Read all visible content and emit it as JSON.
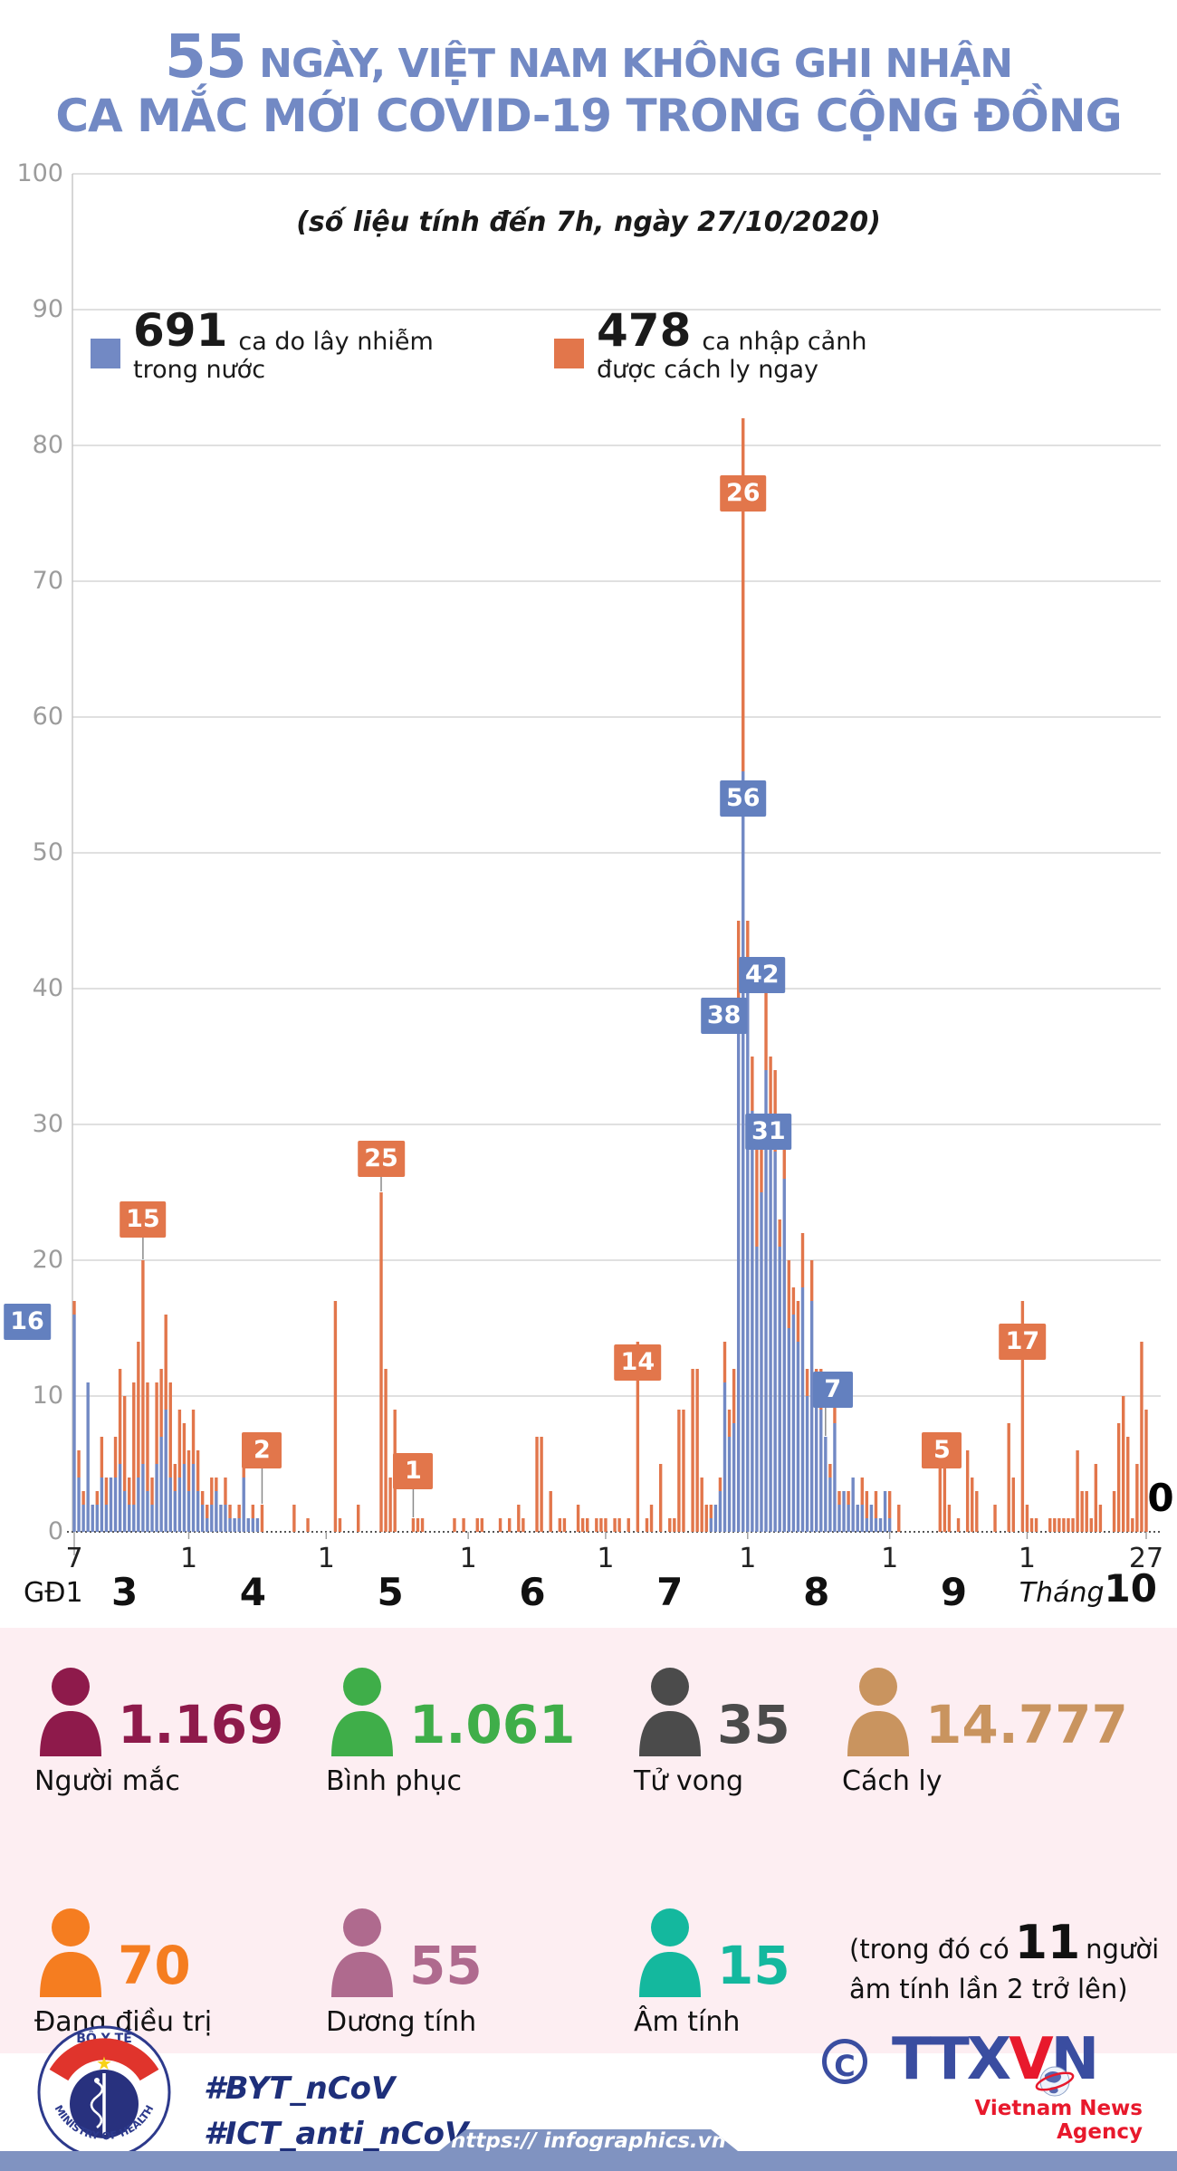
{
  "colors": {
    "bar_blue": "#7289c4",
    "bar_orange": "#e2764b",
    "title_blue": "#7289c4",
    "grid": "#cdcdcd",
    "axis_label_gray": "#9c9c9c",
    "pink_bg": "#fdeef2",
    "bottom_bar": "#8093c1",
    "hashtag_navy": "#1e2f7a",
    "ttx_blue": "#3a4da0",
    "ttx_red": "#e8192c"
  },
  "title": {
    "big": "55",
    "line1_rest": " NGÀY, VIỆT NAM KHÔNG GHI NHẬN",
    "line2": "CA MẮC MỚI COVID-19 TRONG CỘNG ĐỒNG",
    "subtitle": "(số liệu tính đến 7h, ngày 27/10/2020)"
  },
  "legend": {
    "domestic": {
      "value": "691",
      "label1": "ca do lây nhiễm",
      "label2": "trong nước",
      "color": "#7289c4"
    },
    "imported": {
      "value": "478",
      "label1": "ca nhập cảnh",
      "label2": "được cách ly ngay",
      "color": "#e2764b"
    }
  },
  "chart_data": {
    "type": "bar",
    "subtype": "stacked-daily",
    "title": "55 ngày, Việt Nam không ghi nhận ca mắc mới COVID-19 trong cộng đồng",
    "series_names": [
      "ca do lây nhiễm trong nước",
      "ca nhập cảnh được cách ly ngay"
    ],
    "series_colors": [
      "#7289c4",
      "#e2764b"
    ],
    "ylim": [
      0,
      100
    ],
    "ytick_step": 10,
    "grid": true,
    "xlabel": "Tháng",
    "x_start_note": "GĐ1",
    "days": [
      [
        "7/3",
        16,
        1
      ],
      [
        "8/3",
        4,
        2
      ],
      [
        "9/3",
        2,
        1
      ],
      [
        "10/3",
        11,
        0
      ],
      [
        "11/3",
        2,
        0
      ],
      [
        "12/3",
        2,
        1
      ],
      [
        "13/3",
        4,
        3
      ],
      [
        "14/3",
        2,
        2
      ],
      [
        "15/3",
        4,
        0
      ],
      [
        "16/3",
        4,
        3
      ],
      [
        "17/3",
        5,
        7
      ],
      [
        "18/3",
        3,
        7
      ],
      [
        "19/3",
        2,
        2
      ],
      [
        "20/3",
        2,
        9
      ],
      [
        "21/3",
        4,
        10
      ],
      [
        "22/3",
        5,
        15
      ],
      [
        "23/3",
        3,
        8
      ],
      [
        "24/3",
        2,
        2
      ],
      [
        "25/3",
        5,
        6
      ],
      [
        "26/3",
        7,
        5
      ],
      [
        "27/3",
        9,
        7
      ],
      [
        "28/3",
        4,
        7
      ],
      [
        "29/3",
        3,
        2
      ],
      [
        "30/3",
        4,
        5
      ],
      [
        "31/3",
        5,
        3
      ],
      [
        "1/4",
        3,
        3
      ],
      [
        "2/4",
        5,
        4
      ],
      [
        "3/4",
        3,
        3
      ],
      [
        "4/4",
        2,
        1
      ],
      [
        "5/4",
        1,
        1
      ],
      [
        "6/4",
        2,
        2
      ],
      [
        "7/4",
        3,
        1
      ],
      [
        "8/4",
        2,
        0
      ],
      [
        "9/4",
        2,
        2
      ],
      [
        "10/4",
        1,
        1
      ],
      [
        "11/4",
        1,
        0
      ],
      [
        "12/4",
        1,
        1
      ],
      [
        "13/4",
        4,
        1
      ],
      [
        "14/4",
        1,
        0
      ],
      [
        "15/4",
        1,
        1
      ],
      [
        "16/4",
        1,
        0
      ],
      [
        "17/4",
        0,
        2
      ],
      [
        "18/4",
        0,
        0
      ],
      [
        "19/4",
        0,
        0
      ],
      [
        "20/4",
        0,
        0
      ],
      [
        "21/4",
        0,
        0
      ],
      [
        "22/4",
        0,
        0
      ],
      [
        "23/4",
        0,
        0
      ],
      [
        "24/4",
        0,
        2
      ],
      [
        "25/4",
        0,
        0
      ],
      [
        "26/4",
        0,
        0
      ],
      [
        "27/4",
        0,
        1
      ],
      [
        "28/4",
        0,
        0
      ],
      [
        "29/4",
        0,
        0
      ],
      [
        "30/4",
        0,
        0
      ],
      [
        "1/5",
        0,
        0
      ],
      [
        "2/5",
        0,
        0
      ],
      [
        "3/5",
        0,
        17
      ],
      [
        "4/5",
        0,
        1
      ],
      [
        "5/5",
        0,
        0
      ],
      [
        "6/5",
        0,
        0
      ],
      [
        "7/5",
        0,
        0
      ],
      [
        "8/5",
        0,
        2
      ],
      [
        "9/5",
        0,
        0
      ],
      [
        "10/5",
        0,
        0
      ],
      [
        "11/5",
        0,
        0
      ],
      [
        "12/5",
        0,
        0
      ],
      [
        "13/5",
        0,
        25
      ],
      [
        "14/5",
        0,
        12
      ],
      [
        "15/5",
        0,
        4
      ],
      [
        "16/5",
        0,
        9
      ],
      [
        "17/5",
        0,
        0
      ],
      [
        "18/5",
        0,
        0
      ],
      [
        "19/5",
        0,
        0
      ],
      [
        "20/5",
        0,
        1
      ],
      [
        "21/5",
        0,
        1
      ],
      [
        "22/5",
        0,
        1
      ],
      [
        "23/5",
        0,
        0
      ],
      [
        "24/5",
        0,
        0
      ],
      [
        "25/5",
        0,
        0
      ],
      [
        "26/5",
        0,
        0
      ],
      [
        "27/5",
        0,
        0
      ],
      [
        "28/5",
        0,
        0
      ],
      [
        "29/5",
        0,
        1
      ],
      [
        "30/5",
        0,
        0
      ],
      [
        "31/5",
        0,
        1
      ],
      [
        "1/6",
        0,
        0
      ],
      [
        "2/6",
        0,
        0
      ],
      [
        "3/6",
        0,
        1
      ],
      [
        "4/6",
        0,
        1
      ],
      [
        "5/6",
        0,
        0
      ],
      [
        "6/6",
        0,
        0
      ],
      [
        "7/6",
        0,
        0
      ],
      [
        "8/6",
        0,
        1
      ],
      [
        "9/6",
        0,
        0
      ],
      [
        "10/6",
        0,
        1
      ],
      [
        "11/6",
        0,
        0
      ],
      [
        "12/6",
        0,
        2
      ],
      [
        "13/6",
        0,
        1
      ],
      [
        "14/6",
        0,
        0
      ],
      [
        "15/6",
        0,
        0
      ],
      [
        "16/6",
        0,
        7
      ],
      [
        "17/6",
        0,
        7
      ],
      [
        "18/6",
        0,
        0
      ],
      [
        "19/6",
        0,
        3
      ],
      [
        "20/6",
        0,
        0
      ],
      [
        "21/6",
        0,
        1
      ],
      [
        "22/6",
        0,
        1
      ],
      [
        "23/6",
        0,
        0
      ],
      [
        "24/6",
        0,
        0
      ],
      [
        "25/6",
        0,
        2
      ],
      [
        "26/6",
        0,
        1
      ],
      [
        "27/6",
        0,
        1
      ],
      [
        "28/6",
        0,
        0
      ],
      [
        "29/6",
        0,
        1
      ],
      [
        "30/6",
        0,
        1
      ],
      [
        "1/7",
        0,
        1
      ],
      [
        "2/7",
        0,
        0
      ],
      [
        "3/7",
        0,
        1
      ],
      [
        "4/7",
        0,
        1
      ],
      [
        "5/7",
        0,
        0
      ],
      [
        "6/7",
        0,
        1
      ],
      [
        "7/7",
        0,
        0
      ],
      [
        "8/7",
        0,
        14
      ],
      [
        "9/7",
        0,
        0
      ],
      [
        "10/7",
        0,
        1
      ],
      [
        "11/7",
        0,
        2
      ],
      [
        "12/7",
        0,
        0
      ],
      [
        "13/7",
        0,
        5
      ],
      [
        "14/7",
        0,
        0
      ],
      [
        "15/7",
        0,
        1
      ],
      [
        "16/7",
        0,
        1
      ],
      [
        "17/7",
        0,
        9
      ],
      [
        "18/7",
        0,
        9
      ],
      [
        "19/7",
        0,
        0
      ],
      [
        "20/7",
        0,
        12
      ],
      [
        "21/7",
        0,
        12
      ],
      [
        "22/7",
        0,
        4
      ],
      [
        "23/7",
        0,
        2
      ],
      [
        "24/7",
        1,
        1
      ],
      [
        "25/7",
        2,
        0
      ],
      [
        "26/7",
        3,
        1
      ],
      [
        "27/7",
        11,
        3
      ],
      [
        "28/7",
        7,
        2
      ],
      [
        "29/7",
        8,
        4
      ],
      [
        "30/7",
        38,
        7
      ],
      [
        "31/7",
        56,
        26
      ],
      [
        "1/8",
        42,
        3
      ],
      [
        "2/8",
        31,
        4
      ],
      [
        "3/8",
        21,
        8
      ],
      [
        "4/8",
        25,
        5
      ],
      [
        "5/8",
        34,
        7
      ],
      [
        "6/8",
        30,
        5
      ],
      [
        "7/8",
        28,
        6
      ],
      [
        "8/8",
        21,
        2
      ],
      [
        "9/8",
        26,
        3
      ],
      [
        "10/8",
        15,
        5
      ],
      [
        "11/8",
        16,
        2
      ],
      [
        "12/8",
        14,
        3
      ],
      [
        "13/8",
        18,
        4
      ],
      [
        "14/8",
        10,
        2
      ],
      [
        "15/8",
        17,
        3
      ],
      [
        "16/8",
        11,
        1
      ],
      [
        "17/8",
        9,
        3
      ],
      [
        "18/8",
        7,
        0
      ],
      [
        "19/8",
        4,
        1
      ],
      [
        "20/8",
        8,
        2
      ],
      [
        "21/8",
        2,
        1
      ],
      [
        "22/8",
        3,
        0
      ],
      [
        "23/8",
        2,
        1
      ],
      [
        "24/8",
        4,
        0
      ],
      [
        "25/8",
        2,
        0
      ],
      [
        "26/8",
        2,
        2
      ],
      [
        "27/8",
        1,
        2
      ],
      [
        "28/8",
        2,
        0
      ],
      [
        "29/8",
        1,
        2
      ],
      [
        "30/8",
        1,
        0
      ],
      [
        "31/8",
        3,
        0
      ],
      [
        "1/9",
        1,
        2
      ],
      [
        "2/9",
        0,
        0
      ],
      [
        "3/9",
        0,
        2
      ],
      [
        "4/9",
        0,
        0
      ],
      [
        "5/9",
        0,
        0
      ],
      [
        "6/9",
        0,
        0
      ],
      [
        "7/9",
        0,
        0
      ],
      [
        "8/9",
        0,
        0
      ],
      [
        "9/9",
        0,
        0
      ],
      [
        "10/9",
        0,
        0
      ],
      [
        "11/9",
        0,
        0
      ],
      [
        "12/9",
        0,
        5
      ],
      [
        "13/9",
        0,
        5
      ],
      [
        "14/9",
        0,
        2
      ],
      [
        "15/9",
        0,
        0
      ],
      [
        "16/9",
        0,
        1
      ],
      [
        "17/9",
        0,
        0
      ],
      [
        "18/9",
        0,
        6
      ],
      [
        "19/9",
        0,
        4
      ],
      [
        "20/9",
        0,
        3
      ],
      [
        "21/9",
        0,
        0
      ],
      [
        "22/9",
        0,
        0
      ],
      [
        "23/9",
        0,
        0
      ],
      [
        "24/9",
        0,
        2
      ],
      [
        "25/9",
        0,
        0
      ],
      [
        "26/9",
        0,
        0
      ],
      [
        "27/9",
        0,
        8
      ],
      [
        "28/9",
        0,
        4
      ],
      [
        "29/9",
        0,
        0
      ],
      [
        "30/9",
        0,
        17
      ],
      [
        "1/10",
        0,
        2
      ],
      [
        "2/10",
        0,
        1
      ],
      [
        "3/10",
        0,
        1
      ],
      [
        "4/10",
        0,
        0
      ],
      [
        "5/10",
        0,
        0
      ],
      [
        "6/10",
        0,
        1
      ],
      [
        "7/10",
        0,
        1
      ],
      [
        "8/10",
        0,
        1
      ],
      [
        "9/10",
        0,
        1
      ],
      [
        "10/10",
        0,
        1
      ],
      [
        "11/10",
        0,
        1
      ],
      [
        "12/10",
        0,
        6
      ],
      [
        "13/10",
        0,
        3
      ],
      [
        "14/10",
        0,
        3
      ],
      [
        "15/10",
        0,
        1
      ],
      [
        "16/10",
        0,
        5
      ],
      [
        "17/10",
        0,
        2
      ],
      [
        "18/10",
        0,
        0
      ],
      [
        "19/10",
        0,
        0
      ],
      [
        "20/10",
        0,
        3
      ],
      [
        "21/10",
        0,
        8
      ],
      [
        "22/10",
        0,
        10
      ],
      [
        "23/10",
        0,
        7
      ],
      [
        "24/10",
        0,
        1
      ],
      [
        "25/10",
        0,
        5
      ],
      [
        "26/10",
        0,
        14
      ],
      [
        "27/10",
        0,
        9
      ]
    ],
    "callouts": [
      {
        "label": "16",
        "day": "7/3",
        "series": "b",
        "v": 15.5,
        "dx": -52,
        "conn": false
      },
      {
        "label": "15",
        "day": "22/3",
        "series": "o",
        "v": 23,
        "dx": 0,
        "conn": true
      },
      {
        "label": "2",
        "day": "17/4",
        "series": "o",
        "v": 6,
        "dx": 0,
        "conn": true
      },
      {
        "label": "25",
        "day": "13/5",
        "series": "o",
        "v": 27.5,
        "dx": 0,
        "conn": true
      },
      {
        "label": "1",
        "day": "20/5",
        "series": "o",
        "v": 4.5,
        "dx": 0,
        "conn": true
      },
      {
        "label": "14",
        "day": "8/7",
        "series": "o",
        "v": 12.5,
        "dx": 0,
        "conn": false
      },
      {
        "label": "26",
        "day": "31/7",
        "series": "o",
        "v": 76.5,
        "dx": 0,
        "conn": false
      },
      {
        "label": "56",
        "day": "31/7",
        "series": "b",
        "v": 54,
        "dx": 0,
        "conn": false
      },
      {
        "label": "38",
        "day": "30/7",
        "series": "b",
        "v": 38,
        "dx": -16,
        "conn": false
      },
      {
        "label": "42",
        "day": "1/8",
        "series": "b",
        "v": 41,
        "dx": 16,
        "conn": false
      },
      {
        "label": "31",
        "day": "2/8",
        "series": "b",
        "v": 29.5,
        "dx": 18,
        "conn": false
      },
      {
        "label": "7",
        "day": "18/8",
        "series": "b",
        "v": 10.5,
        "dx": 8,
        "conn": true
      },
      {
        "label": "5",
        "day": "13/9",
        "series": "o",
        "v": 6,
        "dx": -3,
        "conn": true
      },
      {
        "label": "17",
        "day": "30/9",
        "series": "o",
        "v": 14,
        "dx": 0,
        "conn": false
      },
      {
        "label": "0",
        "day": "27/10",
        "series": "text",
        "v": 2.5,
        "dx": 16,
        "conn": false
      }
    ],
    "x_ticks": [
      {
        "t": "7",
        "day": "7/3",
        "len": 26
      },
      {
        "t": "1",
        "day": "1/4",
        "len": 8
      },
      {
        "t": "1",
        "day": "1/5",
        "len": 8
      },
      {
        "t": "1",
        "day": "1/6",
        "len": 8
      },
      {
        "t": "1",
        "day": "1/7",
        "len": 8
      },
      {
        "t": "1",
        "day": "1/8",
        "len": 8
      },
      {
        "t": "1",
        "day": "1/9",
        "len": 8
      },
      {
        "t": "1",
        "day": "1/10",
        "len": 8
      },
      {
        "t": "27",
        "day": "27/10",
        "len": 8
      }
    ],
    "month_labels": [
      {
        "m": "3",
        "day": "18/3"
      },
      {
        "m": "4",
        "day": "15/4"
      },
      {
        "m": "5",
        "day": "15/5"
      },
      {
        "m": "6",
        "day": "15/6"
      },
      {
        "m": "7",
        "day": "15/7"
      },
      {
        "m": "8",
        "day": "16/8"
      },
      {
        "m": "9",
        "day": "15/9"
      }
    ],
    "month_label_word": "Tháng",
    "month_label_num": "10",
    "gd1": "GĐ1"
  },
  "stats": {
    "row1": [
      {
        "value": "1.169",
        "label": "Người mắc",
        "color": "#8e1a4b"
      },
      {
        "value": "1.061",
        "label": "Bình phục",
        "color": "#3fae49"
      },
      {
        "value": "35",
        "label": "Tử vong",
        "color": "#4b4b4b"
      },
      {
        "value": "14.777",
        "label": "Cách ly",
        "color": "#c9945f"
      }
    ],
    "row2": [
      {
        "value": "70",
        "label": "Đang điều trị",
        "color": "#f57d20"
      },
      {
        "value": "55",
        "label": "Dương tính",
        "color": "#af6a8e"
      },
      {
        "value": "15",
        "label": "Âm tính",
        "color": "#14b89e"
      }
    ],
    "note": {
      "pre": "(trong đó có",
      "big": "11",
      "post": "người",
      "line2": "âm tính lần 2 trở lên)"
    }
  },
  "footer": {
    "hashtag1": "#BYT_nCoV",
    "hashtag2": "#ICT_anti_nCoV",
    "copyright": "C",
    "ttx_part1": "TTX",
    "ttx_part2": "V",
    "ttx_part3": "N",
    "ttx_tagline": "Vietnam News Agency",
    "moh_top": "BỘ Y TẾ",
    "moh_bottom": "MINISTRY OF HEALTH",
    "url": "https:// infographics.vn"
  }
}
